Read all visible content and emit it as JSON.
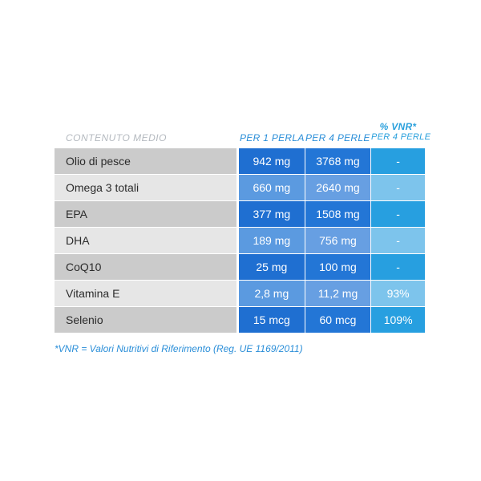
{
  "header": {
    "content_label": "CONTENUTO MEDIO",
    "per1_label": "PER 1 PERLA",
    "per4_label": "PER 4 PERLE",
    "vnr_title": "% VNR*",
    "vnr_sub": "PER 4 PERLE"
  },
  "rows": [
    {
      "name": "Olio di pesce",
      "per1": "942 mg",
      "per4": "3768 mg",
      "vnr": "-"
    },
    {
      "name": "Omega 3 totali",
      "per1": "660 mg",
      "per4": "2640 mg",
      "vnr": "-"
    },
    {
      "name": "EPA",
      "per1": "377 mg",
      "per4": "1508 mg",
      "vnr": "-"
    },
    {
      "name": "DHA",
      "per1": "189 mg",
      "per4": "756 mg",
      "vnr": "-"
    },
    {
      "name": "CoQ10",
      "per1": "25 mg",
      "per4": "100 mg",
      "vnr": "-"
    },
    {
      "name": "Vitamina E",
      "per1": "2,8 mg",
      "per4": "11,2 mg",
      "vnr": "93%"
    },
    {
      "name": "Selenio",
      "per1": "15 mcg",
      "per4": "60 mcg",
      "vnr": "109%"
    }
  ],
  "footnote": "*VNR = Valori Nutritivi di Riferimento (Reg. UE 1169/2011)",
  "colors": {
    "accent_blue": "#2a8ed8",
    "dark_blue": "#1f6fd1",
    "light_blue": "#5b9ae0",
    "cyan": "#279fe0"
  }
}
